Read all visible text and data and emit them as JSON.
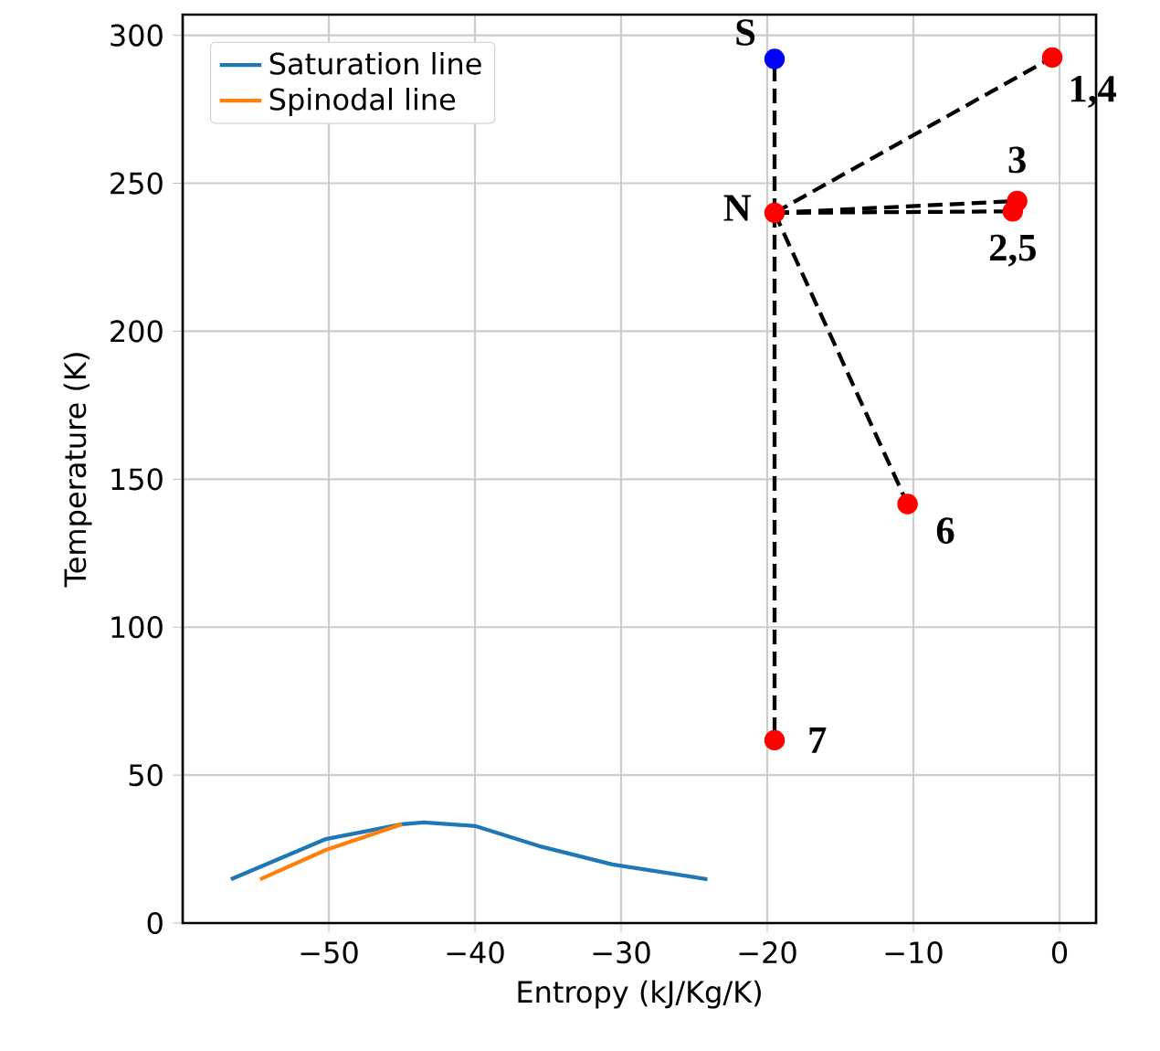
{
  "chart_data": {
    "type": "scatter",
    "xlabel": "Entropy (kJ/Kg/K)",
    "ylabel": "Temperature (K)",
    "xlim": [
      -60,
      2.5
    ],
    "ylim": [
      0,
      307
    ],
    "xticks": [
      {
        "value": -50,
        "label": "−50"
      },
      {
        "value": -40,
        "label": "−40"
      },
      {
        "value": -30,
        "label": "−30"
      },
      {
        "value": -20,
        "label": "−20"
      },
      {
        "value": -10,
        "label": "−10"
      },
      0
    ],
    "yticks": [
      0,
      50,
      100,
      150,
      200,
      250,
      300
    ],
    "grid": true,
    "legend": "top left",
    "series": [
      {
        "name": "Saturation line",
        "type": "line",
        "color": "#1f77b4",
        "marker": "none",
        "line_style": "solid",
        "x": [
          -56.7,
          -50.2,
          -45,
          -43.5,
          -40,
          -35.6,
          -30.6,
          -24.1
        ],
        "values": [
          14.8,
          28.4,
          33.4,
          34,
          32.8,
          26,
          19.8,
          14.8
        ]
      },
      {
        "name": "Spinodal line",
        "type": "line",
        "color": "#ff7f0e",
        "marker": "none",
        "line_style": "solid",
        "x": [
          -54.7,
          -50.2,
          -45
        ],
        "values": [
          14.8,
          24.7,
          33.4
        ]
      },
      {
        "type": "line",
        "color": "#000000",
        "marker": "none",
        "line_style": "dashed",
        "x": [
          -19.5,
          -19.5
        ],
        "values": [
          240,
          292
        ]
      },
      {
        "type": "line",
        "color": "#000000",
        "marker": "none",
        "line_style": "dashed",
        "x": [
          -19.5,
          -0.5
        ],
        "values": [
          240,
          292.5
        ]
      },
      {
        "type": "line",
        "color": "#000000",
        "marker": "none",
        "line_style": "dashed",
        "x": [
          -19.5,
          -2.9
        ],
        "values": [
          240,
          244
        ]
      },
      {
        "type": "line",
        "color": "#000000",
        "marker": "none",
        "line_style": "dashed",
        "x": [
          -19.5,
          -3.2
        ],
        "values": [
          240,
          240.5
        ]
      },
      {
        "type": "line",
        "color": "#000000",
        "marker": "none",
        "line_style": "dashed",
        "x": [
          -19.5,
          -10.4
        ],
        "values": [
          240,
          141.6
        ]
      },
      {
        "type": "line",
        "color": "#000000",
        "marker": "none",
        "line_style": "dashed",
        "x": [
          -19.5,
          -19.5
        ],
        "values": [
          240,
          61.8
        ]
      },
      {
        "color": "#0000ff",
        "marker": "circle",
        "x": [
          -19.5
        ],
        "values": [
          292
        ]
      },
      {
        "color": "#ff0000",
        "marker": "circle",
        "x": [
          -19.5,
          -0.5,
          -2.9,
          -3.2,
          -10.4,
          -19.5
        ],
        "values": [
          240,
          292.5,
          244,
          240.5,
          141.6,
          61.8
        ]
      }
    ],
    "annotations": [
      {
        "text": "S",
        "x": -19.5,
        "y": 292
      },
      {
        "text": "N",
        "x": -19.5,
        "y": 240
      },
      {
        "text": "1,4",
        "x": -0.5,
        "y": 292.5
      },
      {
        "text": "3",
        "x": -2.9,
        "y": 244
      },
      {
        "text": "2,5",
        "x": -3.2,
        "y": 240.5
      },
      {
        "text": "6",
        "x": -10.4,
        "y": 141.6
      },
      {
        "text": "7",
        "x": -19.5,
        "y": 61.8
      }
    ]
  }
}
